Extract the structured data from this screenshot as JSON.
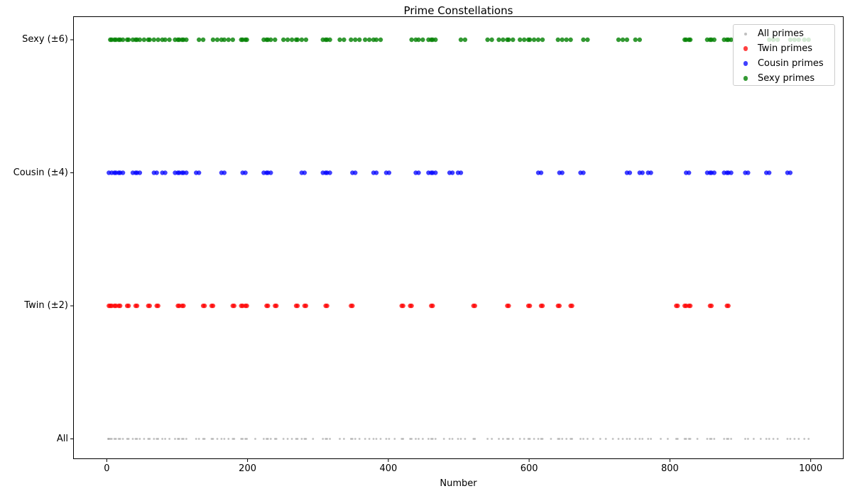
{
  "chart_data": {
    "type": "scatter",
    "title": "Prime Constellations",
    "xlabel": "Number",
    "xlim": [
      -47.75,
      1046.75
    ],
    "x_ticks": [
      0,
      200,
      400,
      600,
      800,
      1000
    ],
    "y_categories": [
      "All",
      "Twin (±2)",
      "Cousin (±4)",
      "Sexy (±6)"
    ],
    "grid": false,
    "legend_position": "upper right",
    "series": [
      {
        "label": "All primes",
        "y_category": "All",
        "color": "#808080",
        "alpha": 0.5,
        "marker_radius": 1.4,
        "legend_marker_radius": 2,
        "values": [
          2,
          3,
          5,
          7,
          11,
          13,
          17,
          19,
          23,
          29,
          31,
          37,
          41,
          43,
          47,
          53,
          59,
          61,
          67,
          71,
          73,
          79,
          83,
          89,
          97,
          101,
          103,
          107,
          109,
          113,
          127,
          131,
          137,
          139,
          149,
          151,
          157,
          163,
          167,
          173,
          179,
          181,
          191,
          193,
          197,
          199,
          211,
          223,
          227,
          229,
          233,
          239,
          241,
          251,
          257,
          263,
          269,
          271,
          277,
          281,
          283,
          293,
          307,
          311,
          313,
          317,
          331,
          337,
          347,
          349,
          353,
          359,
          367,
          373,
          379,
          383,
          389,
          397,
          401,
          409,
          419,
          421,
          431,
          433,
          439,
          443,
          449,
          457,
          461,
          463,
          467,
          479,
          487,
          491,
          499,
          503,
          509,
          521,
          523,
          541,
          547,
          557,
          563,
          569,
          571,
          577,
          587,
          593,
          599,
          601,
          607,
          613,
          617,
          619,
          631,
          641,
          643,
          647,
          653,
          659,
          661,
          673,
          677,
          683,
          691,
          701,
          709,
          719,
          727,
          733,
          739,
          743,
          751,
          757,
          761,
          769,
          773,
          787,
          797,
          809,
          811,
          821,
          823,
          827,
          829,
          839,
          853,
          857,
          859,
          863,
          877,
          881,
          883,
          887,
          907,
          911,
          919,
          929,
          937,
          941,
          947,
          953,
          967,
          971,
          977,
          983,
          991,
          997
        ]
      },
      {
        "label": "Twin primes",
        "y_category": "Twin (±2)",
        "color": "#ff0000",
        "alpha": 0.75,
        "marker_radius": 3.2,
        "legend_marker_radius": 3.2,
        "values": [
          3,
          5,
          7,
          11,
          13,
          17,
          19,
          29,
          31,
          41,
          43,
          59,
          61,
          71,
          73,
          101,
          103,
          107,
          109,
          137,
          139,
          149,
          151,
          179,
          181,
          191,
          193,
          197,
          199,
          227,
          229,
          239,
          241,
          269,
          271,
          281,
          283,
          311,
          313,
          347,
          349,
          419,
          421,
          431,
          433,
          461,
          463,
          521,
          523,
          569,
          571,
          599,
          601,
          617,
          619,
          641,
          643,
          659,
          661,
          809,
          811,
          821,
          823,
          827,
          829,
          857,
          859,
          881,
          883
        ]
      },
      {
        "label": "Cousin primes",
        "y_category": "Cousin (±4)",
        "color": "#0000ff",
        "alpha": 0.75,
        "marker_radius": 3.2,
        "legend_marker_radius": 3.2,
        "values": [
          3,
          7,
          11,
          13,
          17,
          19,
          23,
          37,
          41,
          43,
          47,
          67,
          71,
          79,
          83,
          97,
          101,
          103,
          107,
          109,
          113,
          127,
          131,
          163,
          167,
          193,
          197,
          223,
          227,
          229,
          233,
          277,
          281,
          307,
          311,
          313,
          317,
          349,
          353,
          379,
          383,
          397,
          401,
          439,
          443,
          457,
          461,
          463,
          467,
          487,
          491,
          499,
          503,
          613,
          617,
          643,
          647,
          673,
          677,
          739,
          743,
          757,
          761,
          769,
          773,
          823,
          827,
          853,
          857,
          859,
          863,
          877,
          881,
          883,
          887,
          907,
          911,
          937,
          941,
          967,
          971
        ]
      },
      {
        "label": "Sexy primes",
        "y_category": "Sexy (±6)",
        "color": "#008000",
        "alpha": 0.8,
        "marker_radius": 3.2,
        "legend_marker_radius": 3.2,
        "values": [
          5,
          7,
          11,
          13,
          17,
          19,
          23,
          29,
          31,
          37,
          41,
          43,
          47,
          53,
          59,
          61,
          67,
          73,
          79,
          83,
          89,
          97,
          101,
          103,
          107,
          109,
          113,
          131,
          137,
          151,
          157,
          163,
          167,
          173,
          179,
          191,
          193,
          197,
          199,
          223,
          227,
          229,
          233,
          239,
          251,
          257,
          263,
          269,
          271,
          277,
          283,
          307,
          311,
          313,
          317,
          331,
          337,
          347,
          353,
          359,
          367,
          373,
          379,
          383,
          389,
          433,
          439,
          443,
          449,
          457,
          461,
          463,
          467,
          503,
          509,
          541,
          547,
          557,
          563,
          569,
          571,
          577,
          587,
          593,
          599,
          601,
          607,
          613,
          619,
          641,
          647,
          653,
          659,
          677,
          683,
          727,
          733,
          739,
          751,
          757,
          821,
          823,
          827,
          829,
          853,
          857,
          859,
          863,
          877,
          881,
          883,
          887,
          941,
          947,
          953,
          971,
          977,
          983,
          991,
          997
        ]
      }
    ]
  }
}
